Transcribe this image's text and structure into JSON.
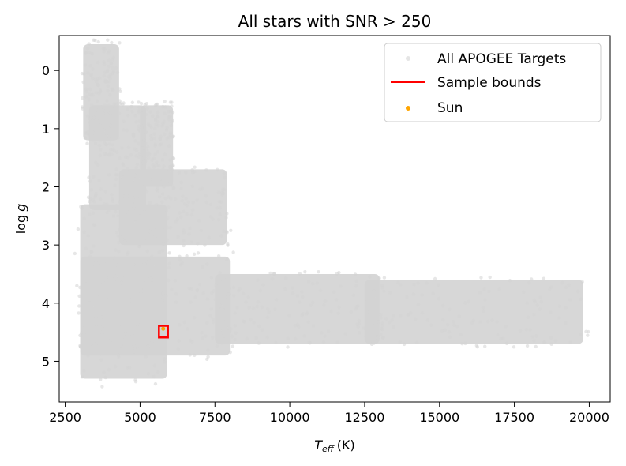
{
  "chart_data": {
    "type": "scatter",
    "title": "All stars with SNR > 250",
    "xlabel": "T_eff (K)",
    "xlabel_main": "T",
    "xlabel_sub": "eff",
    "xlabel_unit": "(K)",
    "ylabel": "log g",
    "ylabel_log": "log",
    "ylabel_g": "g",
    "xlim": [
      2300,
      20700
    ],
    "ylim": [
      5.7,
      -0.6
    ],
    "y_inverted": true,
    "grid": false,
    "legend_position": "top-right",
    "x_ticks": [
      2500,
      5000,
      7500,
      10000,
      12500,
      15000,
      17500,
      20000
    ],
    "x_tick_labels": [
      "2500",
      "5000",
      "7500",
      "10000",
      "12500",
      "15000",
      "17500",
      "20000"
    ],
    "y_ticks": [
      0,
      1,
      2,
      3,
      4,
      5
    ],
    "y_tick_labels": [
      "0",
      "1",
      "2",
      "3",
      "4",
      "5"
    ],
    "series": [
      {
        "name": "All APOGEE Targets",
        "kind": "scatter-cloud",
        "color": "#d3d3d3",
        "regions": [
          {
            "x": [
              3100,
              4300
            ],
            "y": [
              -0.45,
              1.2
            ]
          },
          {
            "x": [
              3300,
              5200
            ],
            "y": [
              0.6,
              2.4
            ]
          },
          {
            "x": [
              5000,
              6100
            ],
            "y": [
              0.6,
              2.0
            ]
          },
          {
            "x": [
              4300,
              7900
            ],
            "y": [
              1.7,
              3.0
            ]
          },
          {
            "x": [
              3000,
              5900
            ],
            "y": [
              2.3,
              5.3
            ]
          },
          {
            "x": [
              3000,
              8000
            ],
            "y": [
              3.2,
              4.9
            ]
          },
          {
            "x": [
              7500,
              13000
            ],
            "y": [
              3.5,
              4.7
            ]
          },
          {
            "x": [
              12500,
              19800
            ],
            "y": [
              3.6,
              4.7
            ]
          }
        ]
      },
      {
        "name": "Sample bounds",
        "kind": "rectangle",
        "color": "#ff0000",
        "x": [
          5630,
          5930
        ],
        "y": [
          4.39,
          4.59
        ]
      },
      {
        "name": "Sun",
        "kind": "point",
        "color": "#ffa500",
        "x": 5772,
        "y": 4.44
      }
    ]
  }
}
